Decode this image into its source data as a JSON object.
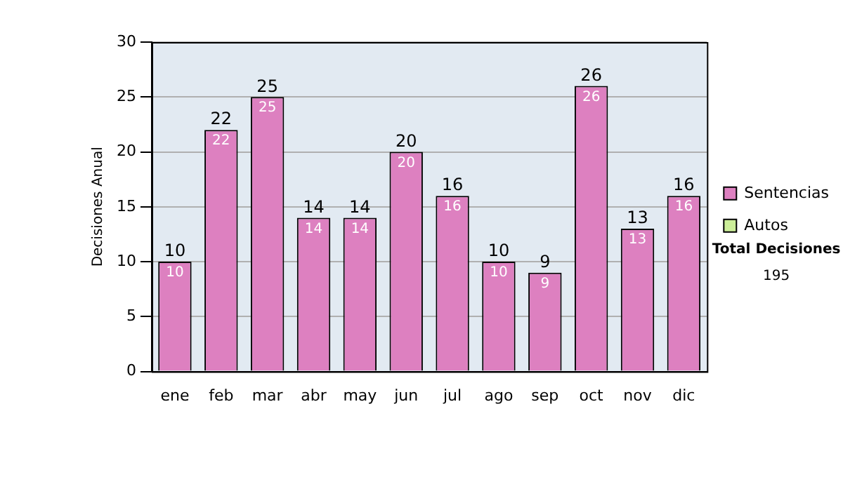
{
  "chart_data": {
    "type": "bar",
    "ylabel": "Decisiones Anual",
    "categories": [
      "ene",
      "feb",
      "mar",
      "abr",
      "may",
      "jun",
      "jul",
      "ago",
      "sep",
      "oct",
      "nov",
      "dic"
    ],
    "series": [
      {
        "name": "Sentencias",
        "color": "#dd80c0",
        "values": [
          10,
          22,
          25,
          14,
          14,
          20,
          16,
          10,
          9,
          26,
          13,
          16
        ],
        "value_labels": [
          "10",
          "22",
          "25",
          "14",
          "14",
          "20",
          "16",
          "10",
          "9",
          "26",
          "13",
          "16"
        ]
      },
      {
        "name": "Autos",
        "color": "#ccee99",
        "values": [
          0,
          0,
          0,
          0,
          0,
          0,
          0,
          0,
          0,
          0,
          0,
          0
        ]
      }
    ],
    "stacked": true,
    "totals": [
      "10",
      "22",
      "25",
      "14",
      "14",
      "20",
      "16",
      "10",
      "9",
      "26",
      "13",
      "16"
    ],
    "ylim": [
      0,
      30
    ],
    "yticks": [
      0,
      5,
      10,
      15,
      20,
      25,
      30
    ],
    "grid": "y",
    "legend": "right",
    "annotations": [
      "Total Decisiones",
      "195"
    ]
  }
}
